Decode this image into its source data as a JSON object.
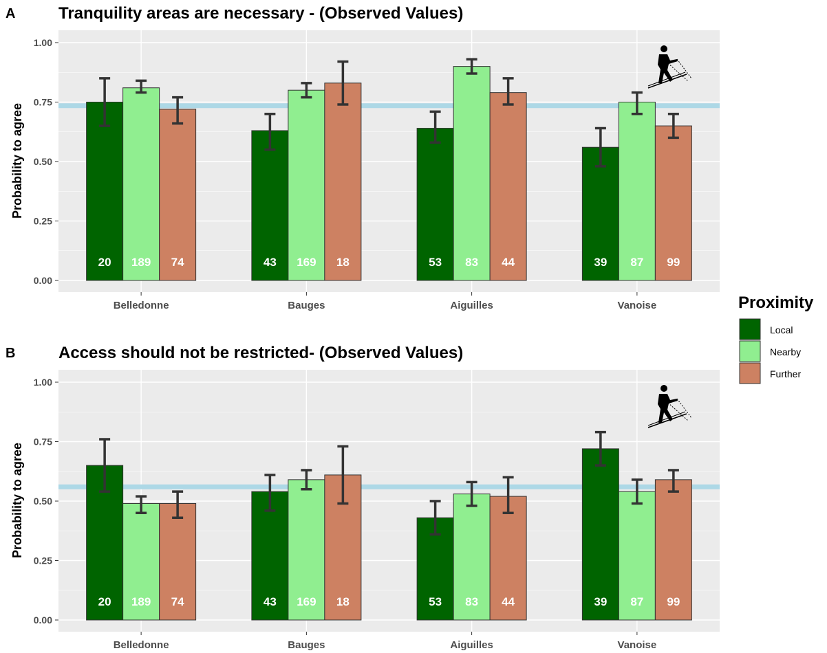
{
  "legend": {
    "title": "Proximity",
    "position": "right",
    "entries": [
      {
        "key": "local",
        "label": "Local",
        "color": "#006400"
      },
      {
        "key": "nearby",
        "label": "Nearby",
        "color": "#90EE90"
      },
      {
        "key": "further",
        "label": "Further",
        "color": "#CD8162"
      }
    ]
  },
  "chart_data": [
    {
      "type": "bar",
      "panel": "A",
      "title": "Tranquility areas are necessary - (Observed Values)",
      "xlabel": "",
      "ylabel": "Probability to agree",
      "ylim": [
        0,
        1
      ],
      "yticks": [
        "0.00",
        "0.25",
        "0.50",
        "0.75",
        "1.00"
      ],
      "grid": true,
      "icon": "skier-icon",
      "reference_line": 0.735,
      "reference_line_color": "#ADD8E6",
      "categories": [
        "Belledonne",
        "Bauges",
        "Aiguilles",
        "Vanoise"
      ],
      "series": [
        {
          "name": "Local",
          "color": "#006400",
          "values": [
            0.75,
            0.63,
            0.64,
            0.56
          ],
          "lower": [
            0.65,
            0.55,
            0.58,
            0.48
          ],
          "upper": [
            0.85,
            0.7,
            0.71,
            0.64
          ],
          "n": [
            "20",
            "43",
            "53",
            "39"
          ]
        },
        {
          "name": "Nearby",
          "color": "#90EE90",
          "values": [
            0.81,
            0.8,
            0.9,
            0.75
          ],
          "lower": [
            0.79,
            0.77,
            0.87,
            0.7
          ],
          "upper": [
            0.84,
            0.83,
            0.93,
            0.79
          ],
          "n": [
            "189",
            "169",
            "83",
            "87"
          ]
        },
        {
          "name": "Further",
          "color": "#CD8162",
          "values": [
            0.72,
            0.83,
            0.79,
            0.65
          ],
          "lower": [
            0.66,
            0.74,
            0.74,
            0.6
          ],
          "upper": [
            0.77,
            0.92,
            0.85,
            0.7
          ],
          "n": [
            "74",
            "18",
            "44",
            "99"
          ]
        }
      ]
    },
    {
      "type": "bar",
      "panel": "B",
      "title": "Access should not be restricted- (Observed Values)",
      "xlabel": "",
      "ylabel": "Probability to agree",
      "ylim": [
        0,
        1
      ],
      "yticks": [
        "0.00",
        "0.25",
        "0.50",
        "0.75",
        "1.00"
      ],
      "grid": true,
      "icon": "skier-icon",
      "reference_line": 0.56,
      "reference_line_color": "#ADD8E6",
      "categories": [
        "Belledonne",
        "Bauges",
        "Aiguilles",
        "Vanoise"
      ],
      "series": [
        {
          "name": "Local",
          "color": "#006400",
          "values": [
            0.65,
            0.54,
            0.43,
            0.72
          ],
          "lower": [
            0.54,
            0.46,
            0.36,
            0.65
          ],
          "upper": [
            0.76,
            0.61,
            0.5,
            0.79
          ],
          "n": [
            "20",
            "43",
            "53",
            "39"
          ]
        },
        {
          "name": "Nearby",
          "color": "#90EE90",
          "values": [
            0.49,
            0.59,
            0.53,
            0.54
          ],
          "lower": [
            0.45,
            0.55,
            0.48,
            0.49
          ],
          "upper": [
            0.52,
            0.63,
            0.58,
            0.59
          ],
          "n": [
            "189",
            "169",
            "83",
            "87"
          ]
        },
        {
          "name": "Further",
          "color": "#CD8162",
          "values": [
            0.49,
            0.61,
            0.52,
            0.59
          ],
          "lower": [
            0.43,
            0.49,
            0.45,
            0.54
          ],
          "upper": [
            0.54,
            0.73,
            0.6,
            0.63
          ],
          "n": [
            "74",
            "18",
            "44",
            "99"
          ]
        }
      ]
    }
  ]
}
